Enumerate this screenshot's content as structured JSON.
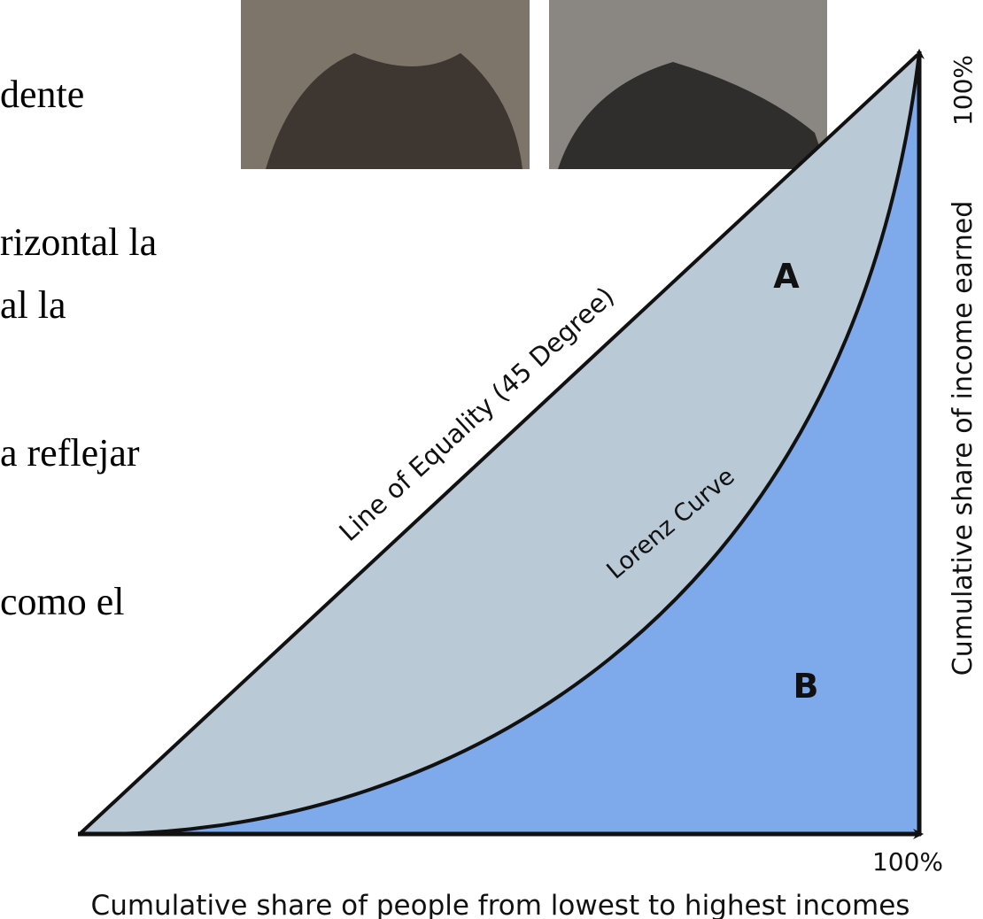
{
  "slide_text": [
    "dente",
    "rizontal la",
    "al la",
    "a reflejar",
    "como el"
  ],
  "diagram": {
    "y_top_label": "100%",
    "x_end_label": "100%",
    "y_axis_label": "Cumulative share of income earned",
    "x_axis_label": "Cumulative share of people from lowest to highest incomes",
    "equality_label": "Line of Equality (45 Degree)",
    "curve_label": "Lorenz Curve",
    "area_a": "A",
    "area_b": "B"
  }
}
